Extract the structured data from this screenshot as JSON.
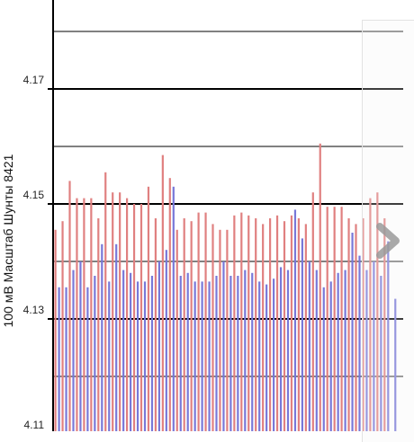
{
  "chart_data": {
    "type": "bar",
    "ylabel": "100 мВ Масштаб   Шунты 8421",
    "ylim": [
      4.11,
      4.19
    ],
    "ytick_values": [
      4.11,
      4.13,
      4.15,
      4.17
    ],
    "ytick_labels": [
      "4.11",
      "4.13",
      "4.15",
      "4.17"
    ],
    "minor_gridlines": [
      4.12,
      4.14,
      4.16,
      4.18
    ],
    "colors": {
      "series_a": "#e08080",
      "series_b": "#7878d8",
      "axis": "#000000",
      "grid": "#000000"
    },
    "series": [
      {
        "values": [
          4.1455,
          4.147,
          4.154,
          4.151,
          4.151,
          4.151,
          4.1475,
          4.1555,
          4.152,
          4.152,
          4.151,
          4.15,
          4.15,
          4.153,
          4.1475,
          4.1585,
          4.1545,
          4.1455,
          4.1475,
          4.147,
          4.1485,
          4.1485,
          4.1465,
          4.1455,
          4.1455,
          4.148,
          4.1485,
          4.148,
          4.1475,
          4.1465,
          4.1475,
          4.148,
          4.147,
          4.148,
          4.1475,
          4.1465,
          4.152,
          4.1605,
          4.1495,
          4.1495,
          4.1495,
          4.1475,
          4.1465,
          4.1475,
          4.151,
          4.152,
          4.1475
        ]
      },
      {
        "values": [
          4.1355,
          4.1355,
          4.1385,
          4.14,
          4.1355,
          4.1375,
          4.143,
          4.1365,
          4.143,
          4.1385,
          4.138,
          4.1365,
          4.1365,
          4.1375,
          4.14,
          4.142,
          4.153,
          4.1375,
          4.138,
          4.1365,
          4.1365,
          4.1365,
          4.1375,
          4.14,
          4.1375,
          4.1375,
          4.1385,
          4.138,
          4.1365,
          4.136,
          4.137,
          4.139,
          4.1385,
          4.149,
          4.144,
          4.14,
          4.1385,
          4.1355,
          4.1365,
          4.138,
          4.1385,
          4.145,
          4.141,
          4.1385,
          4.14,
          4.1375,
          4.1435,
          4.1335
        ]
      }
    ]
  },
  "nav": {
    "next_icon": "chevron-right-icon"
  }
}
